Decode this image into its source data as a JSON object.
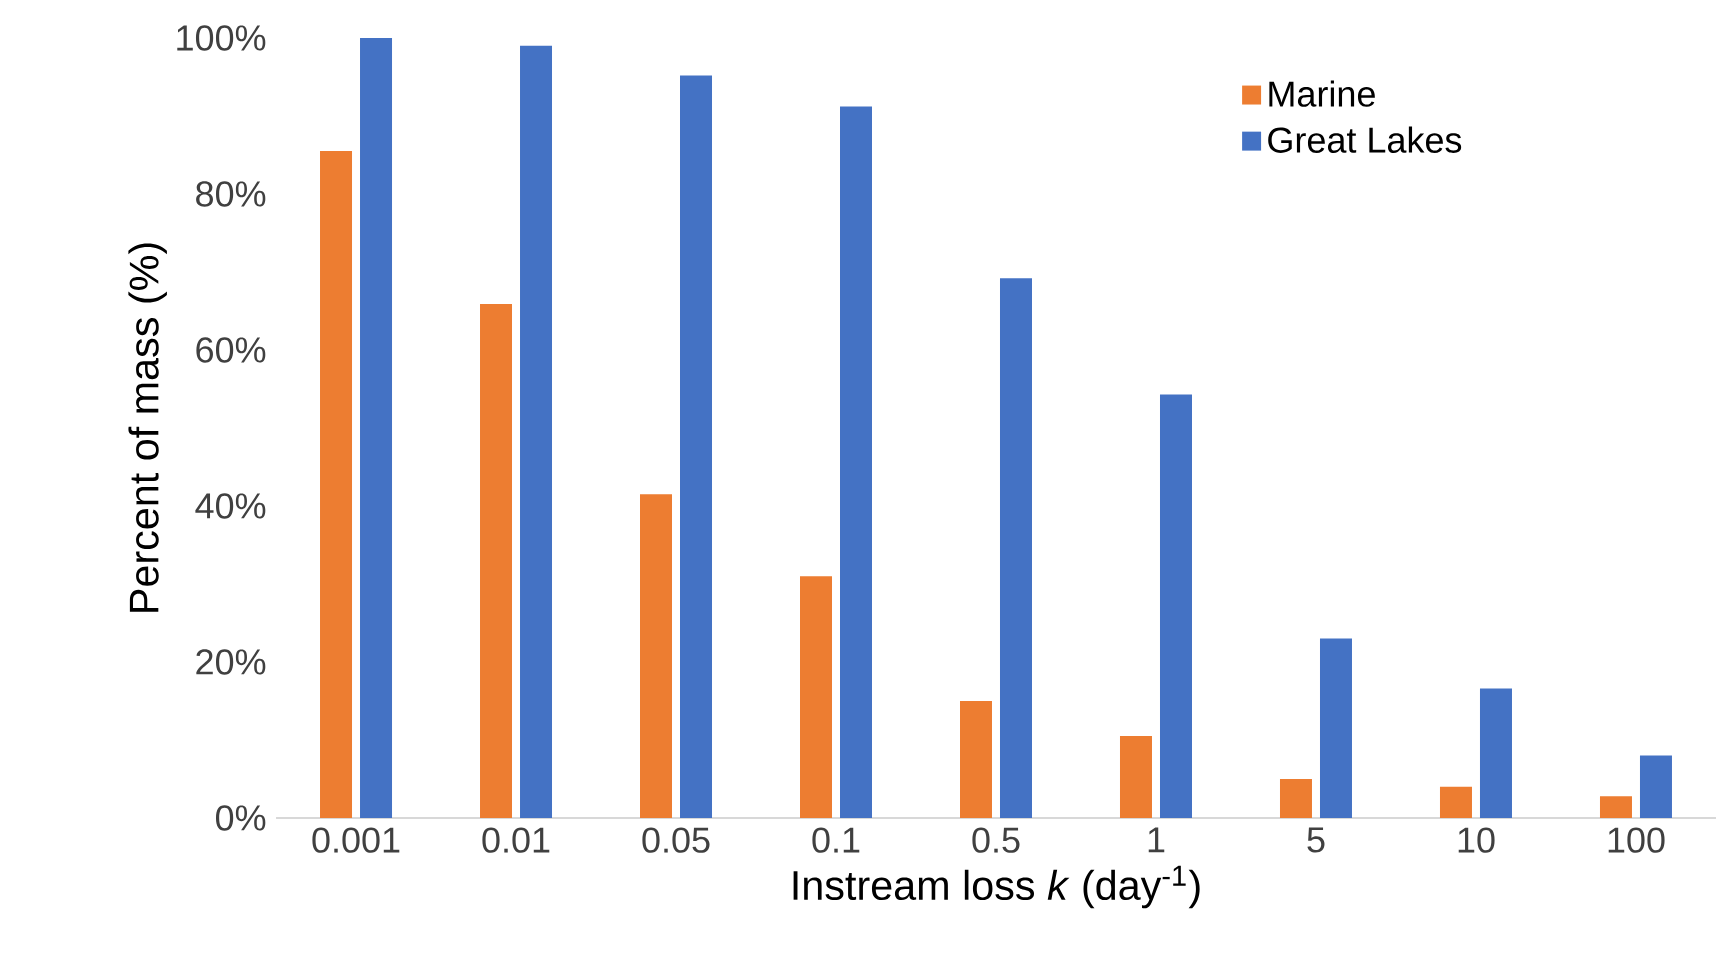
{
  "chart_data": {
    "type": "bar",
    "xlabel": "Instream loss *k* (day$^{-1}$)",
    "ylabel": "Percent of mass (%)",
    "categories": [
      "0.001",
      "0.01",
      "0.05",
      "0.1",
      "0.5",
      "1",
      "5",
      "10",
      "100"
    ],
    "series": [
      {
        "name": "Marine",
        "color": "#ed7d31",
        "values": [
          85.5,
          65.9,
          41.5,
          31,
          15,
          10.5,
          5,
          4,
          2.8
        ]
      },
      {
        "name": "Great Lakes",
        "color": "#4472c4",
        "values": [
          100,
          99,
          95.2,
          91.2,
          69.2,
          54.3,
          23,
          16.6,
          8
        ]
      }
    ],
    "ylim": [
      0,
      100
    ],
    "yticks": [
      {
        "value": 0,
        "label": "0%"
      },
      {
        "value": 20,
        "label": "20%"
      },
      {
        "value": 40,
        "label": "40%"
      },
      {
        "value": 60,
        "label": "60%"
      },
      {
        "value": 80,
        "label": "80%"
      },
      {
        "value": 100,
        "label": "100%"
      }
    ],
    "grid": false,
    "legend": "top right"
  }
}
